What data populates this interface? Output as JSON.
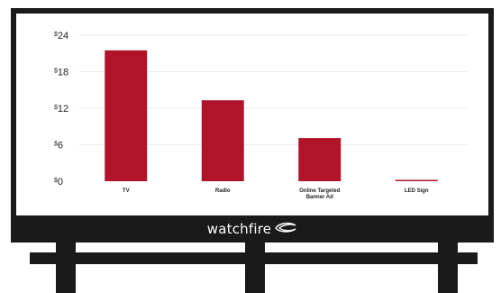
{
  "brand": {
    "name": "watchfire",
    "logo_icon": "watchfire-swoosh-icon"
  },
  "colors": {
    "bar": "#b0132a",
    "frame": "#1a1a1a",
    "grid": "#eeeeee"
  },
  "chart_data": {
    "type": "bar",
    "title": "",
    "xlabel": "",
    "ylabel": "",
    "ylim": [
      0,
      24
    ],
    "yticks": [
      0,
      6,
      12,
      18,
      24
    ],
    "ytick_prefix": "$",
    "categories": [
      [
        "TV"
      ],
      [
        "Radio"
      ],
      [
        "Online Targeted",
        "Banner Ad"
      ],
      [
        "LED Sign"
      ]
    ],
    "values": [
      21.5,
      13.3,
      7.1,
      0.2
    ],
    "grid": true
  }
}
